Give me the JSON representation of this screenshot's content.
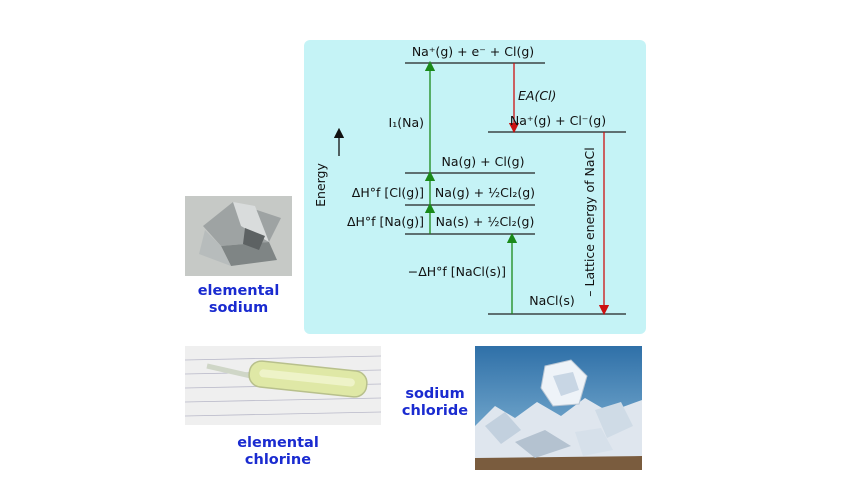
{
  "diagram": {
    "levels": {
      "top": "Na⁺(g) + e⁻ + Cl(g)",
      "ions": "Na⁺(g) + Cl⁻(g)",
      "atoms": "Na(g) + Cl(g)",
      "na_gas": "Na(g) + ½Cl₂(g)",
      "elements": "Na(s) + ½Cl₂(g)",
      "nacl": "NaCl(s)"
    },
    "arrows": {
      "ea": "EA(Cl)",
      "ionization": "I₁(Na)",
      "dhf_cl": "ΔH°f [Cl(g)]",
      "dhf_na": "ΔH°f [Na(g)]",
      "dhf_nacl": "−ΔH°f [NaCl(s)]",
      "lattice": "– Lattice energy of NaCl"
    },
    "axis_label": "Energy",
    "colors": {
      "up": "#1a8a1a",
      "down": "#cc1111",
      "panel": "#c5f3f6"
    }
  },
  "captions": {
    "sodium": [
      "elemental",
      "sodium"
    ],
    "chlorine": [
      "elemental",
      "chlorine"
    ],
    "nacl": [
      "sodium",
      "chloride"
    ]
  }
}
